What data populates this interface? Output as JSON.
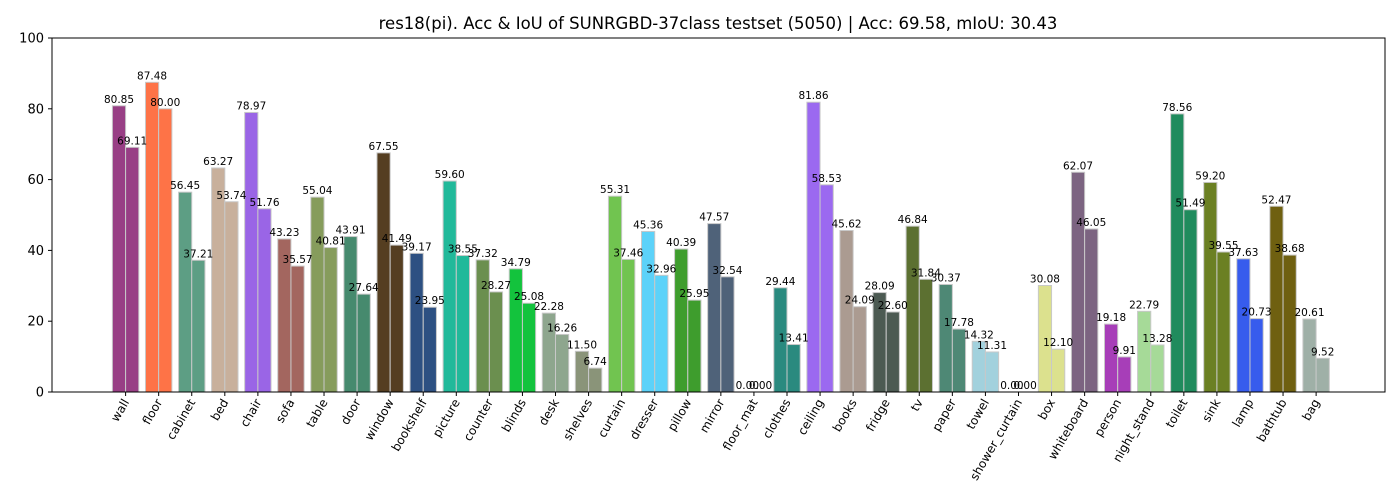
{
  "chart_data": {
    "type": "bar",
    "title": "res18(pi). Acc & IoU of SUNRGBD-37class testset (5050) | Acc: 69.58, mIoU: 30.43",
    "xlabel": "",
    "ylabel": "",
    "ylim": [
      0,
      100
    ],
    "yticks": [
      0,
      20,
      40,
      60,
      80,
      100
    ],
    "grid": false,
    "legend": "none",
    "categories": [
      "wall",
      "floor",
      "cabinet",
      "bed",
      "chair",
      "sofa",
      "table",
      "door",
      "window",
      "bookshelf",
      "picture",
      "counter",
      "blinds",
      "desk",
      "shelves",
      "curtain",
      "dresser",
      "pillow",
      "mirror",
      "floor_mat",
      "clothes",
      "ceiling",
      "books",
      "fridge",
      "tv",
      "paper",
      "towel",
      "shower_curtain",
      "box",
      "whiteboard",
      "person",
      "night_stand",
      "toilet",
      "sink",
      "lamp",
      "bathtub",
      "bag"
    ],
    "colors": [
      "#983f85",
      "#fe7347",
      "#5d9e84",
      "#c8b09c",
      "#9a65e6",
      "#a3665f",
      "#869c5c",
      "#468a6e",
      "#553e21",
      "#2d5082",
      "#21b99a",
      "#6b8f4f",
      "#13c33d",
      "#8ea68e",
      "#8a9479",
      "#71c450",
      "#5cd2f9",
      "#3e9d2d",
      "#4f6279",
      "#808080",
      "#2a8a7f",
      "#9b69f0",
      "#ab9b91",
      "#4c5a52",
      "#5c7031",
      "#4e8875",
      "#a2d1dd",
      "#808080",
      "#dce18e",
      "#7c6481",
      "#a73eb8",
      "#a6da98",
      "#208b5d",
      "#6b8023",
      "#375ced",
      "#6f6010",
      "#9fb0a7"
    ],
    "series": [
      {
        "values": [
          80.85,
          87.48,
          56.45,
          63.27,
          78.97,
          43.23,
          55.04,
          43.91,
          67.55,
          39.17,
          59.6,
          37.32,
          34.79,
          22.28,
          11.5,
          55.31,
          45.36,
          40.39,
          47.57,
          0.0,
          29.44,
          81.86,
          45.62,
          28.09,
          46.84,
          30.37,
          14.32,
          0.0,
          30.08,
          62.07,
          19.18,
          22.79,
          78.56,
          59.2,
          37.63,
          52.47,
          20.61
        ]
      },
      {
        "values": [
          69.11,
          80.0,
          37.21,
          53.74,
          51.76,
          35.57,
          40.81,
          27.64,
          41.49,
          23.95,
          38.55,
          28.27,
          25.08,
          16.26,
          6.74,
          37.46,
          32.96,
          25.95,
          32.54,
          0.0,
          13.41,
          58.53,
          24.09,
          22.6,
          31.84,
          17.78,
          11.31,
          0.0,
          12.1,
          46.05,
          9.91,
          13.28,
          51.49,
          39.55,
          20.73,
          38.68,
          9.52
        ]
      }
    ]
  }
}
